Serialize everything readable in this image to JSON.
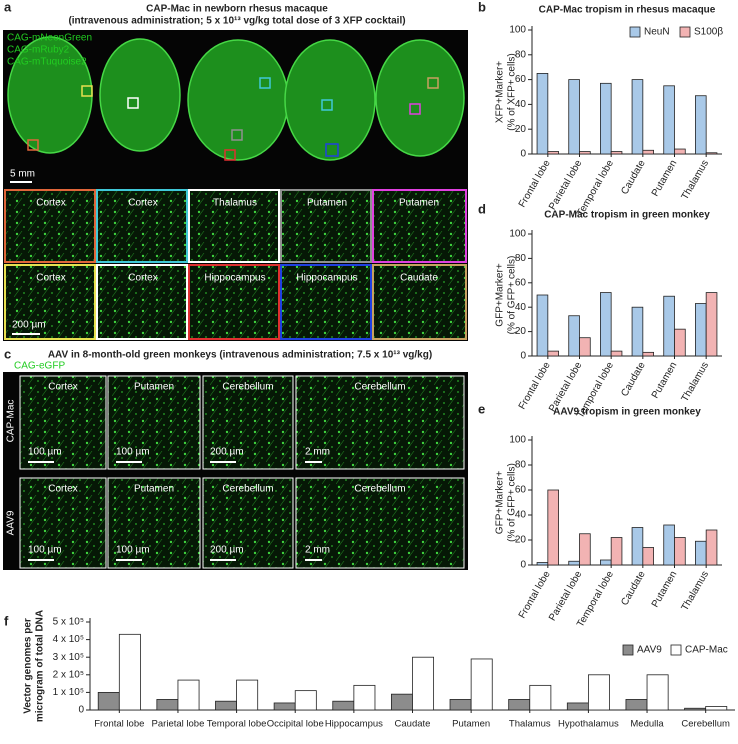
{
  "panel_a": {
    "letter": "a",
    "title": [
      "CAP-Mac in newborn rhesus macaque",
      "(intravenous administration; 5 x 10¹³ vg/kg total dose of 3 XFP cocktail)"
    ],
    "reporters": [
      "CAG-mNeonGreen",
      "CAG-mRuby2",
      "CAG-mTuquoise2"
    ],
    "scale": "5 mm",
    "tiles": [
      [
        "Cortex",
        "Cortex",
        "Thalamus",
        "Putamen",
        "Putamen"
      ],
      [
        "Cortex",
        "Cortex",
        "Hippocampus",
        "Hippocampus",
        "Caudate"
      ]
    ],
    "tile_scale": "200 µm"
  },
  "panel_c": {
    "letter": "c",
    "title": "AAV in 8-month-old green monkeys (intravenous administration; 7.5 x 10¹³ vg/kg)",
    "reporter": "CAG-eGFP",
    "rows": [
      "CAP-Mac",
      "AAV9"
    ],
    "tiles": [
      [
        "Cortex",
        "Putamen",
        "Cerebellum",
        "Cerebellum"
      ],
      [
        "Cortex",
        "Putamen",
        "Cerebellum",
        "Cerebellum"
      ]
    ],
    "scales": [
      [
        "100 µm",
        "100 µm",
        "200 µm",
        "2 mm"
      ],
      [
        "100 µm",
        "100 µm",
        "200 µm",
        "2 mm"
      ]
    ]
  },
  "chart_data": [
    {
      "type": "bar",
      "letter": "b",
      "title": "CAP-Mac tropism in rhesus macaque",
      "y_label": [
        "XFP+Marker+",
        "(% of XFP+ cells)"
      ],
      "categories": [
        "Frontal lobe",
        "Parietal lobe",
        "Temporal lobe",
        "Caudate",
        "Putamen",
        "Thalamus"
      ],
      "series": [
        {
          "name": "NeuN",
          "color": "#a9c9e8",
          "values": [
            65,
            60,
            57,
            60,
            55,
            47
          ]
        },
        {
          "name": "S100β",
          "color": "#f2b3b3",
          "values": [
            2,
            2,
            2,
            3,
            4,
            1
          ]
        }
      ],
      "ylim": [
        0,
        100
      ],
      "yticks": [
        0,
        20,
        40,
        60,
        80,
        100
      ],
      "legend": "top-right"
    },
    {
      "type": "bar",
      "letter": "d",
      "title": "CAP-Mac tropism in green monkey",
      "y_label": [
        "GFP+Marker+",
        "(% of GFP+ cells)"
      ],
      "categories": [
        "Frontal lobe",
        "Parietal lobe",
        "Temporal lobe",
        "Caudate",
        "Putamen",
        "Thalamus"
      ],
      "series": [
        {
          "color": "#a9c9e8",
          "values": [
            50,
            33,
            52,
            40,
            49,
            43
          ]
        },
        {
          "color": "#f2b3b3",
          "values": [
            4,
            15,
            4,
            3,
            22,
            52
          ]
        }
      ],
      "ylim": [
        0,
        100
      ],
      "yticks": [
        0,
        20,
        40,
        60,
        80,
        100
      ]
    },
    {
      "type": "bar",
      "letter": "e",
      "title": "AAV9 tropism in green monkey",
      "y_label": [
        "GFP+Marker+",
        "(% of GFP+ cells)"
      ],
      "categories": [
        "Frontal lobe",
        "Parietal lobe",
        "Temporal lobe",
        "Caudate",
        "Putamen",
        "Thalamus"
      ],
      "series": [
        {
          "color": "#a9c9e8",
          "values": [
            2,
            3,
            4,
            30,
            32,
            19
          ]
        },
        {
          "color": "#f2b3b3",
          "values": [
            60,
            25,
            22,
            14,
            22,
            28
          ]
        }
      ],
      "ylim": [
        0,
        100
      ],
      "yticks": [
        0,
        20,
        40,
        60,
        80,
        100
      ]
    },
    {
      "type": "bar",
      "letter": "f",
      "y_label": [
        "Vector genomes per",
        "microgram of total DNA"
      ],
      "categories": [
        "Frontal lobe",
        "Parietal lobe",
        "Temporal lobe",
        "Occipital lobe",
        "Hippocampus",
        "Caudate",
        "Putamen",
        "Thalamus",
        "Hypothalamus",
        "Medulla",
        "Cerebellum"
      ],
      "series": [
        {
          "name": "AAV9",
          "color": "#8c8c8c",
          "values": [
            100000,
            60000,
            50000,
            40000,
            50000,
            90000,
            60000,
            60000,
            40000,
            60000,
            10000
          ]
        },
        {
          "name": "CAP-Mac",
          "color": "#ffffff",
          "values": [
            430000,
            170000,
            170000,
            110000,
            140000,
            300000,
            290000,
            140000,
            200000,
            200000,
            20000
          ]
        }
      ],
      "ylim": [
        0,
        500000
      ],
      "yticks": [
        0,
        {
          "value": 100000,
          "label": "1 x 10⁵"
        },
        {
          "value": 200000,
          "label": "2 x 10⁵"
        },
        {
          "value": 300000,
          "label": "3 x 10⁵"
        },
        {
          "value": 400000,
          "label": "4 x 10⁵"
        },
        {
          "value": 500000,
          "label": "5 x 10⁵"
        }
      ],
      "legend": "top-right"
    }
  ]
}
